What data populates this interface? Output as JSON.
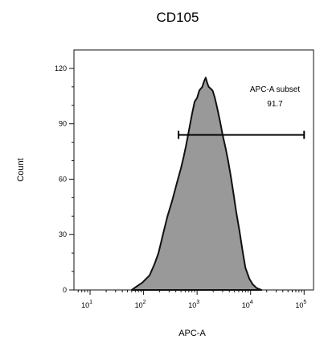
{
  "chart_data": {
    "type": "area",
    "title": "CD105",
    "xlabel": "APC-A",
    "ylabel": "Count",
    "x_scale": "log",
    "xlim": [
      5,
      150000
    ],
    "ylim": [
      0,
      130
    ],
    "x_ticks": [
      {
        "value": 10,
        "base": "10",
        "exp": "1"
      },
      {
        "value": 100,
        "base": "10",
        "exp": "2"
      },
      {
        "value": 1000,
        "base": "10",
        "exp": "3"
      },
      {
        "value": 10000,
        "base": "10",
        "exp": "4"
      },
      {
        "value": 100000,
        "base": "10",
        "exp": "5"
      }
    ],
    "y_ticks": [
      {
        "value": 0,
        "label": "0"
      },
      {
        "value": 30,
        "label": "30"
      },
      {
        "value": 60,
        "label": "60"
      },
      {
        "value": 90,
        "label": "90"
      },
      {
        "value": 120,
        "label": "120"
      }
    ],
    "series": [
      {
        "fill": "#999999",
        "stroke": "#111111",
        "points": [
          [
            60,
            0
          ],
          [
            75,
            2
          ],
          [
            95,
            4
          ],
          [
            130,
            8
          ],
          [
            160,
            14
          ],
          [
            190,
            20
          ],
          [
            230,
            30
          ],
          [
            280,
            40
          ],
          [
            340,
            48
          ],
          [
            420,
            58
          ],
          [
            500,
            66
          ],
          [
            560,
            72
          ],
          [
            620,
            78
          ],
          [
            700,
            86
          ],
          [
            800,
            95
          ],
          [
            900,
            102
          ],
          [
            1000,
            104
          ],
          [
            1100,
            108
          ],
          [
            1250,
            110
          ],
          [
            1350,
            113
          ],
          [
            1450,
            115
          ],
          [
            1550,
            112
          ],
          [
            1650,
            110
          ],
          [
            1800,
            109
          ],
          [
            1950,
            108
          ],
          [
            2150,
            104
          ],
          [
            2400,
            98
          ],
          [
            2700,
            91
          ],
          [
            3000,
            84
          ],
          [
            3400,
            77
          ],
          [
            3800,
            70
          ],
          [
            4300,
            61
          ],
          [
            4800,
            52
          ],
          [
            5400,
            42
          ],
          [
            6200,
            32
          ],
          [
            7000,
            22
          ],
          [
            8000,
            12
          ],
          [
            9500,
            6
          ],
          [
            11000,
            3
          ],
          [
            13000,
            1
          ],
          [
            16000,
            0
          ]
        ]
      }
    ],
    "gate": {
      "name": "APC-A subset",
      "value": "91.7",
      "x_start": 450,
      "x_end": 100000,
      "y": 84
    }
  }
}
